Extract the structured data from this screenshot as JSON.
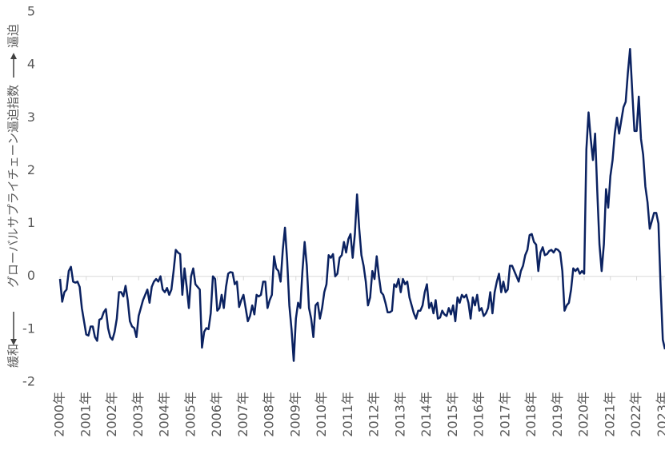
{
  "chart_data": {
    "type": "line",
    "ylabel_low": "緩和",
    "ylabel": "グローバルサプライチェーン逼迫指数",
    "ylabel_high": "逼迫",
    "ylim": [
      -2,
      5
    ],
    "yticks": [
      -2,
      -1,
      0,
      1,
      2,
      3,
      4,
      5
    ],
    "zero_line": true,
    "categories": [
      "2000年",
      null,
      null,
      null,
      null,
      null,
      null,
      null,
      null,
      null,
      null,
      null,
      "2001年",
      null,
      null,
      null,
      null,
      null,
      null,
      null,
      null,
      null,
      null,
      null,
      "2002年",
      null,
      null,
      null,
      null,
      null,
      null,
      null,
      null,
      null,
      null,
      null,
      "2003年",
      null,
      null,
      null,
      null,
      null,
      null,
      null,
      null,
      null,
      null,
      null,
      "2004年",
      null,
      null,
      null,
      null,
      null,
      null,
      null,
      null,
      null,
      null,
      null,
      "2005年",
      null,
      null,
      null,
      null,
      null,
      null,
      null,
      null,
      null,
      null,
      null,
      "2006年",
      null,
      null,
      null,
      null,
      null,
      null,
      null,
      null,
      null,
      null,
      null,
      "2007年",
      null,
      null,
      null,
      null,
      null,
      null,
      null,
      null,
      null,
      null,
      null,
      "2008年",
      null,
      null,
      null,
      null,
      null,
      null,
      null,
      null,
      null,
      null,
      null,
      "2009年",
      null,
      null,
      null,
      null,
      null,
      null,
      null,
      null,
      null,
      null,
      null,
      "2010年",
      null,
      null,
      null,
      null,
      null,
      null,
      null,
      null,
      null,
      null,
      null,
      "2011年",
      null,
      null,
      null,
      null,
      null,
      null,
      null,
      null,
      null,
      null,
      null,
      "2012年",
      null,
      null,
      null,
      null,
      null,
      null,
      null,
      null,
      null,
      null,
      null,
      "2013年",
      null,
      null,
      null,
      null,
      null,
      null,
      null,
      null,
      null,
      null,
      null,
      "2014年",
      null,
      null,
      null,
      null,
      null,
      null,
      null,
      null,
      null,
      null,
      null,
      "2015年",
      null,
      null,
      null,
      null,
      null,
      null,
      null,
      null,
      null,
      null,
      null,
      "2016年",
      null,
      null,
      null,
      null,
      null,
      null,
      null,
      null,
      null,
      null,
      null,
      "2017年",
      null,
      null,
      null,
      null,
      null,
      null,
      null,
      null,
      null,
      null,
      null,
      "2018年",
      null,
      null,
      null,
      null,
      null,
      null,
      null,
      null,
      null,
      null,
      null,
      "2019年",
      null,
      null,
      null,
      null,
      null,
      null,
      null,
      null,
      null,
      null,
      null,
      "2020年",
      null,
      null,
      null,
      null,
      null,
      null,
      null,
      null,
      null,
      null,
      null,
      "2021年",
      null,
      null,
      null,
      null,
      null,
      null,
      null,
      null,
      null,
      null,
      null,
      "2022年",
      null,
      null,
      null,
      null,
      null,
      null,
      null,
      null,
      null,
      null,
      null,
      "2023年",
      null
    ],
    "series": [
      {
        "color": "#0b2261",
        "values": [
          -0.05,
          -0.48,
          -0.3,
          -0.25,
          0.1,
          0.18,
          -0.1,
          -0.12,
          -0.1,
          -0.2,
          -0.6,
          -0.85,
          -1.1,
          -1.12,
          -0.95,
          -0.95,
          -1.15,
          -1.22,
          -0.82,
          -0.8,
          -0.68,
          -0.62,
          -0.98,
          -1.15,
          -1.2,
          -1.05,
          -0.8,
          -0.3,
          -0.3,
          -0.38,
          -0.18,
          -0.45,
          -0.85,
          -0.95,
          -0.98,
          -1.15,
          -0.75,
          -0.6,
          -0.45,
          -0.35,
          -0.25,
          -0.5,
          -0.2,
          -0.1,
          -0.05,
          -0.1,
          0.0,
          -0.25,
          -0.3,
          -0.22,
          -0.35,
          -0.25,
          0.1,
          0.5,
          0.45,
          0.42,
          -0.35,
          0.15,
          -0.2,
          -0.6,
          0.0,
          0.15,
          -0.15,
          -0.2,
          -0.25,
          -1.35,
          -1.05,
          -0.98,
          -1.0,
          -0.7,
          0.0,
          -0.05,
          -0.65,
          -0.6,
          -0.35,
          -0.6,
          -0.2,
          0.05,
          0.08,
          0.07,
          -0.15,
          -0.1,
          -0.58,
          -0.45,
          -0.35,
          -0.6,
          -0.85,
          -0.75,
          -0.55,
          -0.72,
          -0.35,
          -0.38,
          -0.35,
          -0.1,
          -0.1,
          -0.6,
          -0.45,
          -0.35,
          0.38,
          0.15,
          0.1,
          -0.1,
          0.5,
          0.92,
          0.3,
          -0.55,
          -1.0,
          -1.6,
          -0.8,
          -0.5,
          -0.6,
          0.1,
          0.65,
          0.2,
          -0.6,
          -0.8,
          -1.15,
          -0.55,
          -0.5,
          -0.8,
          -0.6,
          -0.3,
          -0.15,
          0.4,
          0.35,
          0.42,
          0.0,
          0.05,
          0.35,
          0.4,
          0.65,
          0.45,
          0.7,
          0.8,
          0.35,
          0.8,
          1.55,
          0.9,
          0.4,
          0.2,
          -0.1,
          -0.55,
          -0.4,
          0.1,
          -0.05,
          0.38,
          0.0,
          -0.3,
          -0.35,
          -0.5,
          -0.68,
          -0.68,
          -0.65,
          -0.15,
          -0.2,
          -0.05,
          -0.3,
          -0.05,
          -0.15,
          -0.1,
          -0.4,
          -0.55,
          -0.7,
          -0.8,
          -0.65,
          -0.65,
          -0.55,
          -0.3,
          -0.15,
          -0.6,
          -0.5,
          -0.7,
          -0.45,
          -0.8,
          -0.78,
          -0.65,
          -0.72,
          -0.75,
          -0.6,
          -0.72,
          -0.55,
          -0.85,
          -0.4,
          -0.5,
          -0.35,
          -0.4,
          -0.35,
          -0.5,
          -0.8,
          -0.4,
          -0.55,
          -0.35,
          -0.65,
          -0.6,
          -0.75,
          -0.7,
          -0.6,
          -0.3,
          -0.7,
          -0.3,
          -0.1,
          0.05,
          -0.3,
          -0.1,
          -0.3,
          -0.25,
          0.2,
          0.2,
          0.1,
          0.0,
          -0.1,
          0.1,
          0.2,
          0.4,
          0.5,
          0.78,
          0.8,
          0.65,
          0.6,
          0.1,
          0.45,
          0.55,
          0.4,
          0.42,
          0.48,
          0.5,
          0.45,
          0.52,
          0.5,
          0.45,
          0.1,
          -0.65,
          -0.55,
          -0.5,
          -0.25,
          0.15,
          0.1,
          0.15,
          0.05,
          0.1,
          0.05,
          2.4,
          3.1,
          2.6,
          2.2,
          2.7,
          1.6,
          0.6,
          0.1,
          0.6,
          1.65,
          1.3,
          1.9,
          2.2,
          2.7,
          3.0,
          2.7,
          2.95,
          3.2,
          3.3,
          3.85,
          4.3,
          3.5,
          2.75,
          2.75,
          3.4,
          2.6,
          2.3,
          1.7,
          1.4,
          0.9,
          1.05,
          1.2,
          1.2,
          1.0,
          -0.2,
          -1.2,
          -1.38
        ]
      }
    ]
  }
}
